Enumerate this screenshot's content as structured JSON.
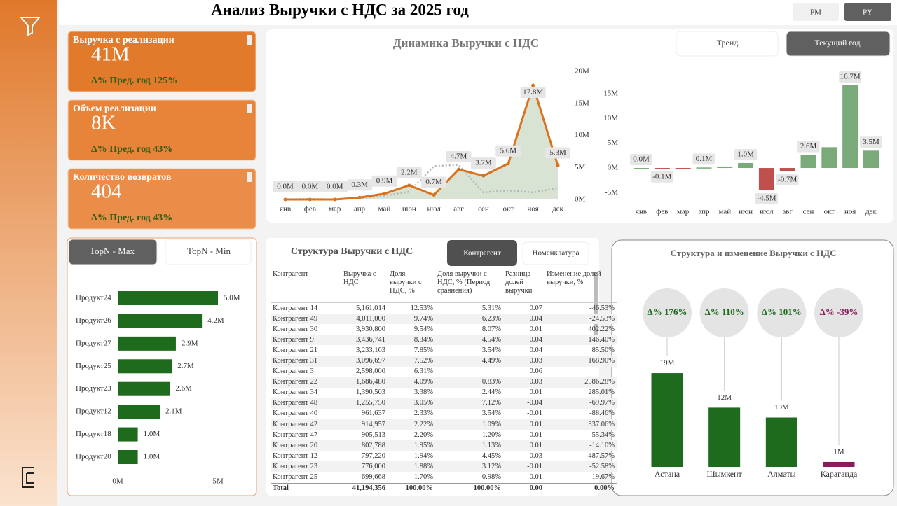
{
  "header": {
    "title": "Анализ Выручки с НДС за  2025  год",
    "buttons": [
      "PM",
      "PY"
    ]
  },
  "kpis": [
    {
      "title": "Выручка с реализации",
      "value": "41M",
      "delta": "Δ% Пред. год 125%"
    },
    {
      "title": "Объем реализации",
      "value": "8K",
      "delta": "Δ% Пред. год 43%"
    },
    {
      "title": "Количество возвратов",
      "value": "404",
      "delta": "Δ% Пред. год 43%"
    }
  ],
  "chart_data": [
    {
      "type": "line",
      "title": "Динамика Выручки с НДС",
      "buttons": [
        "Тренд",
        "Текущий год"
      ],
      "categories": [
        "янв",
        "фев",
        "мар",
        "апр",
        "май",
        "июн",
        "июл",
        "авг",
        "сен",
        "окт",
        "ноя",
        "дек"
      ],
      "series": [
        {
          "color": "#d9731e",
          "values": [
            0,
            0,
            0,
            0.3,
            0.9,
            2.2,
            0.7,
            4.7,
            3.7,
            5.6,
            17.8,
            5.3
          ],
          "value_labels": [
            "0.0M",
            "0.0M",
            "0.0M",
            "0.3M",
            "0.9M",
            "2.2M",
            "0.7M",
            "4.7M",
            "3.7M",
            "5.6M",
            "17.8M",
            "5.3M"
          ]
        },
        {
          "color": "#b5b5b5",
          "values": [
            0,
            0.1,
            0,
            0.2,
            0.6,
            1.2,
            5.2,
            5.4,
            1.1,
            1.4,
            1.1,
            1.8
          ]
        }
      ],
      "ylim": [
        0,
        20
      ],
      "yticks": [
        {
          "value": 0,
          "label": "0M"
        },
        {
          "value": 5,
          "label": "5M"
        },
        {
          "value": 10,
          "label": "10M"
        },
        {
          "value": 15,
          "label": "15M"
        },
        {
          "value": 20,
          "label": "20M"
        }
      ],
      "area_color": "#cfdcc9"
    },
    {
      "type": "bar",
      "categories": [
        "янв",
        "фев",
        "мар",
        "апр",
        "май",
        "июн",
        "июл",
        "авг",
        "сен",
        "окт",
        "ноя",
        "дек"
      ],
      "values": [
        0,
        -0.1,
        -0.05,
        0.1,
        0.3,
        1.0,
        -4.5,
        -0.7,
        2.6,
        4.2,
        16.7,
        3.5
      ],
      "value_labels": [
        "0.0M",
        "-0.1M",
        null,
        "0.1M",
        null,
        "1.0M",
        "-4.5M",
        "-0.7M",
        "2.6M",
        null,
        "16.7M",
        "3.5M"
      ],
      "color": "#7aa97a",
      "negative_color": "#c0504d",
      "ylim": [
        -7,
        20
      ],
      "yticks": [
        {
          "value": -5,
          "label": "-5M"
        },
        {
          "value": 0,
          "label": "0M"
        },
        {
          "value": 5,
          "label": "5M"
        },
        {
          "value": 10,
          "label": "10M"
        },
        {
          "value": 15,
          "label": "15M"
        }
      ]
    },
    {
      "type": "hbar",
      "buttons": [
        "TopN - Max",
        "TopN - Min"
      ],
      "categories": [
        "Продукт24",
        "Продукт26",
        "Продукт27",
        "Продукт25",
        "Продукт23",
        "Продукт12",
        "Продукт18",
        "Продукт20"
      ],
      "values": [
        5.0,
        4.2,
        2.9,
        2.7,
        2.6,
        2.1,
        1.0,
        1.0
      ],
      "value_labels": [
        "5.0M",
        "4.2M",
        "2.9M",
        "2.7M",
        "2.6M",
        "2.1M",
        "1.0M",
        "1.0M"
      ],
      "color": "#1e6b1e",
      "xlim": [
        0,
        5.5
      ],
      "xticks": [
        {
          "value": 0,
          "label": "0M"
        },
        {
          "value": 5,
          "label": "5M"
        }
      ]
    },
    {
      "type": "bar",
      "title": "Структура и изменение Выручки с НДС",
      "categories": [
        "Астана",
        "Шымкент",
        "Алматы",
        "Караганда"
      ],
      "values": [
        19,
        12,
        10,
        1
      ],
      "value_labels": [
        "19M",
        "12M",
        "10M",
        "1M"
      ],
      "annotations": [
        "Δ% 176%",
        "Δ% 110%",
        "Δ% 101%",
        "Δ% -39%"
      ],
      "colors": [
        "#1e6b1e",
        "#1e6b1e",
        "#1e6b1e",
        "#8b1c5c"
      ],
      "ylim": [
        0,
        20
      ]
    }
  ],
  "table": {
    "title": "Структура Выручки с НДС",
    "tabs": [
      "Контрагент",
      "Номенклатура"
    ],
    "columns": [
      "Контрагент",
      "Выручка с НДС",
      "Доля выручки с НДС, %",
      "Доля выручки с НДС, % (Период сравнения)",
      "Разница долей выручки",
      "Изменение долей выручки, %"
    ],
    "rows": [
      [
        "Контрагент 14",
        "5,161,014",
        "12.53%",
        "5.31%",
        "0.07",
        "-46.53%"
      ],
      [
        "Контрагент 49",
        "4,011,000",
        "9.74%",
        "6.23%",
        "0.04",
        "-24.53%"
      ],
      [
        "Контрагент 30",
        "3,930,800",
        "9.54%",
        "8.07%",
        "0.01",
        "402.22%"
      ],
      [
        "Контрагент 9",
        "3,436,741",
        "8.34%",
        "4.54%",
        "0.04",
        "146.40%"
      ],
      [
        "Контрагент 21",
        "3,233,163",
        "7.85%",
        "3.54%",
        "0.04",
        "85.50%"
      ],
      [
        "Контрагент 31",
        "3,096,697",
        "7.52%",
        "4.49%",
        "0.03",
        "168.90%"
      ],
      [
        "Контрагент 3",
        "2,598,000",
        "6.31%",
        null,
        "0.06",
        null
      ],
      [
        "Контрагент 22",
        "1,686,480",
        "4.09%",
        "0.83%",
        "0.03",
        "2586.28%"
      ],
      [
        "Контрагент 34",
        "1,390,503",
        "3.38%",
        "2.44%",
        "0.01",
        "285.01%"
      ],
      [
        "Контрагент 48",
        "1,255,750",
        "3.05%",
        "7.12%",
        "-0.04",
        "-69.97%"
      ],
      [
        "Контрагент 40",
        "961,637",
        "2.33%",
        "3.54%",
        "-0.01",
        "-88.46%"
      ],
      [
        "Контрагент 42",
        "914,957",
        "2.22%",
        "1.09%",
        "0.01",
        "337.06%"
      ],
      [
        "Контрагент 47",
        "905,513",
        "2.20%",
        "1.20%",
        "0.01",
        "-55.34%"
      ],
      [
        "Контрагент 20",
        "802,788",
        "1.95%",
        "1.13%",
        "0.01",
        "-14.10%"
      ],
      [
        "Контрагент 12",
        "797,220",
        "1.94%",
        "4.45%",
        "-0.03",
        "487.57%"
      ],
      [
        "Контрагент 23",
        "776,000",
        "1.88%",
        "3.12%",
        "-0.01",
        "-52.58%"
      ],
      [
        "Контрагент 25",
        "699,668",
        "1.70%",
        "0.98%",
        "0.01",
        "19.67%"
      ]
    ],
    "total": [
      "Total",
      "41,194,356",
      "100.00%",
      "100.00%",
      "0.00",
      "0.00%"
    ]
  }
}
